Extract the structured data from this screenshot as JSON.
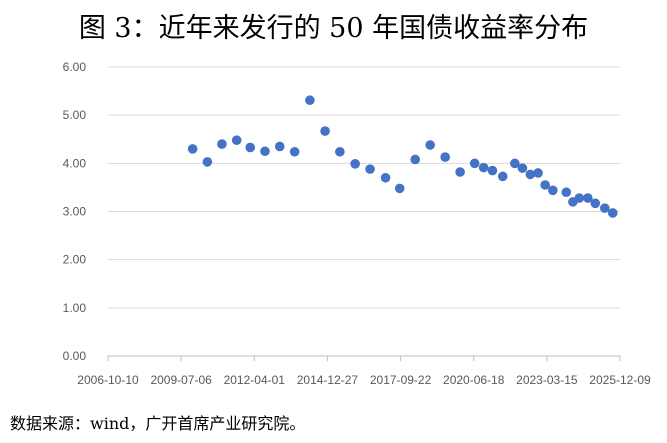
{
  "title": "图 3：近年来发行的 50 年国债收益率分布",
  "source": "数据来源：wind，广开首席产业研究院。",
  "chart_data": {
    "type": "scatter",
    "title": "图 3：近年来发行的 50 年国债收益率分布",
    "xlabel": "",
    "ylabel": "",
    "x_ticks": [
      "2006-10-10",
      "2009-07-06",
      "2012-04-01",
      "2014-12-27",
      "2017-09-22",
      "2020-06-18",
      "2023-03-15",
      "2025-12-09"
    ],
    "xlim": [
      "2006-10-10",
      "2025-12-09"
    ],
    "y_ticks": [
      "0.00",
      "1.00",
      "2.00",
      "3.00",
      "4.00",
      "5.00",
      "6.00"
    ],
    "ylim": [
      0,
      6
    ],
    "grid": "horizontal",
    "marker_color": "#4472C4",
    "points": [
      {
        "x": "2009-12-10",
        "y": 4.3
      },
      {
        "x": "2010-06-30",
        "y": 4.03
      },
      {
        "x": "2011-01-15",
        "y": 4.4
      },
      {
        "x": "2011-08-05",
        "y": 4.48
      },
      {
        "x": "2012-02-05",
        "y": 4.33
      },
      {
        "x": "2012-08-25",
        "y": 4.25
      },
      {
        "x": "2013-03-15",
        "y": 4.35
      },
      {
        "x": "2013-10-05",
        "y": 4.24
      },
      {
        "x": "2014-05-01",
        "y": 5.31
      },
      {
        "x": "2014-11-25",
        "y": 4.67
      },
      {
        "x": "2015-06-15",
        "y": 4.24
      },
      {
        "x": "2016-01-10",
        "y": 3.99
      },
      {
        "x": "2016-08-01",
        "y": 3.88
      },
      {
        "x": "2017-03-01",
        "y": 3.7
      },
      {
        "x": "2017-09-10",
        "y": 3.48
      },
      {
        "x": "2018-04-10",
        "y": 4.08
      },
      {
        "x": "2018-11-01",
        "y": 4.38
      },
      {
        "x": "2019-05-25",
        "y": 4.13
      },
      {
        "x": "2019-12-15",
        "y": 3.82
      },
      {
        "x": "2020-07-01",
        "y": 4.0
      },
      {
        "x": "2020-11-01",
        "y": 3.91
      },
      {
        "x": "2021-03-01",
        "y": 3.85
      },
      {
        "x": "2021-07-20",
        "y": 3.73
      },
      {
        "x": "2022-01-01",
        "y": 4.0
      },
      {
        "x": "2022-04-15",
        "y": 3.9
      },
      {
        "x": "2022-08-01",
        "y": 3.77
      },
      {
        "x": "2022-11-15",
        "y": 3.8
      },
      {
        "x": "2023-02-20",
        "y": 3.55
      },
      {
        "x": "2023-06-05",
        "y": 3.44
      },
      {
        "x": "2023-12-05",
        "y": 3.4
      },
      {
        "x": "2024-03-05",
        "y": 3.2
      },
      {
        "x": "2024-06-01",
        "y": 3.28
      },
      {
        "x": "2024-09-25",
        "y": 3.28
      },
      {
        "x": "2025-01-05",
        "y": 3.17
      },
      {
        "x": "2025-05-15",
        "y": 3.07
      },
      {
        "x": "2025-09-01",
        "y": 2.97
      }
    ]
  }
}
